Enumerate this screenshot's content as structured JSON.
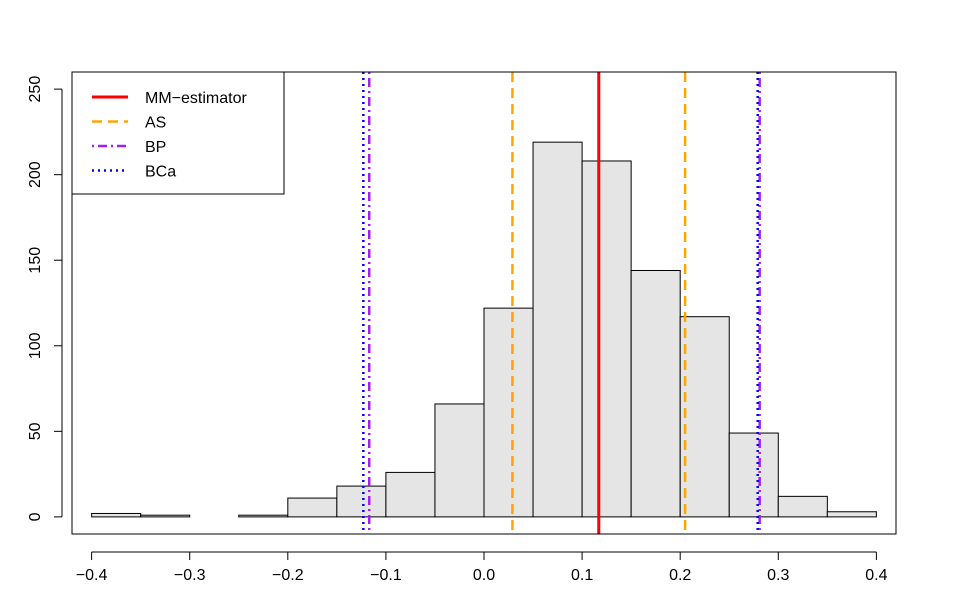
{
  "chart_data": {
    "type": "bar",
    "subtype": "histogram",
    "bins": [
      {
        "x0": -0.4,
        "x1": -0.35,
        "count": 2
      },
      {
        "x0": -0.35,
        "x1": -0.3,
        "count": 1
      },
      {
        "x0": -0.3,
        "x1": -0.25,
        "count": 0
      },
      {
        "x0": -0.25,
        "x1": -0.2,
        "count": 1
      },
      {
        "x0": -0.2,
        "x1": -0.15,
        "count": 11
      },
      {
        "x0": -0.15,
        "x1": -0.1,
        "count": 18
      },
      {
        "x0": -0.1,
        "x1": -0.05,
        "count": 26
      },
      {
        "x0": -0.05,
        "x1": 0.0,
        "count": 66
      },
      {
        "x0": 0.0,
        "x1": 0.05,
        "count": 122
      },
      {
        "x0": 0.05,
        "x1": 0.1,
        "count": 219
      },
      {
        "x0": 0.1,
        "x1": 0.15,
        "count": 208
      },
      {
        "x0": 0.15,
        "x1": 0.2,
        "count": 144
      },
      {
        "x0": 0.2,
        "x1": 0.25,
        "count": 117
      },
      {
        "x0": 0.25,
        "x1": 0.3,
        "count": 49
      },
      {
        "x0": 0.3,
        "x1": 0.35,
        "count": 12
      },
      {
        "x0": 0.35,
        "x1": 0.4,
        "count": 3
      }
    ],
    "bar_fill": "#e5e5e5",
    "bar_stroke": "#000000",
    "xlim": [
      -0.42,
      0.42
    ],
    "ylim": [
      -10,
      260
    ],
    "x_ticks": [
      -0.4,
      -0.3,
      -0.2,
      -0.1,
      0.0,
      0.1,
      0.2,
      0.3,
      0.4
    ],
    "x_tick_labels": [
      "−0.4",
      "−0.3",
      "−0.2",
      "−0.1",
      "0.0",
      "0.1",
      "0.2",
      "0.3",
      "0.4"
    ],
    "y_ticks": [
      0,
      50,
      100,
      150,
      200,
      250
    ],
    "y_tick_labels": [
      "0",
      "50",
      "100",
      "150",
      "200",
      "250"
    ],
    "title": "",
    "xlabel": "",
    "ylabel": "",
    "grid": false,
    "legend_position": "top-left",
    "vlines": [
      {
        "name": "MM−estimator",
        "x": 0.117,
        "color": "#ff0000",
        "style": "solid"
      },
      {
        "name": "AS",
        "x": 0.029,
        "color": "#ffa500",
        "style": "dashed"
      },
      {
        "name": "AS",
        "x": 0.205,
        "color": "#ffa500",
        "style": "dashed"
      },
      {
        "name": "BP",
        "x": -0.117,
        "color": "#a020f0",
        "style": "dotdash"
      },
      {
        "name": "BP",
        "x": 0.281,
        "color": "#a020f0",
        "style": "dotdash"
      },
      {
        "name": "BCa",
        "x": -0.123,
        "color": "#0000ff",
        "style": "dotted"
      },
      {
        "name": "BCa",
        "x": 0.279,
        "color": "#0000ff",
        "style": "dotted"
      }
    ],
    "legend": [
      {
        "label": "MM−estimator",
        "color": "#ff0000",
        "style": "solid"
      },
      {
        "label": "AS",
        "color": "#ffa500",
        "style": "dashed"
      },
      {
        "label": "BP",
        "color": "#a020f0",
        "style": "dotdash"
      },
      {
        "label": "BCa",
        "color": "#0000ff",
        "style": "dotted"
      }
    ]
  }
}
